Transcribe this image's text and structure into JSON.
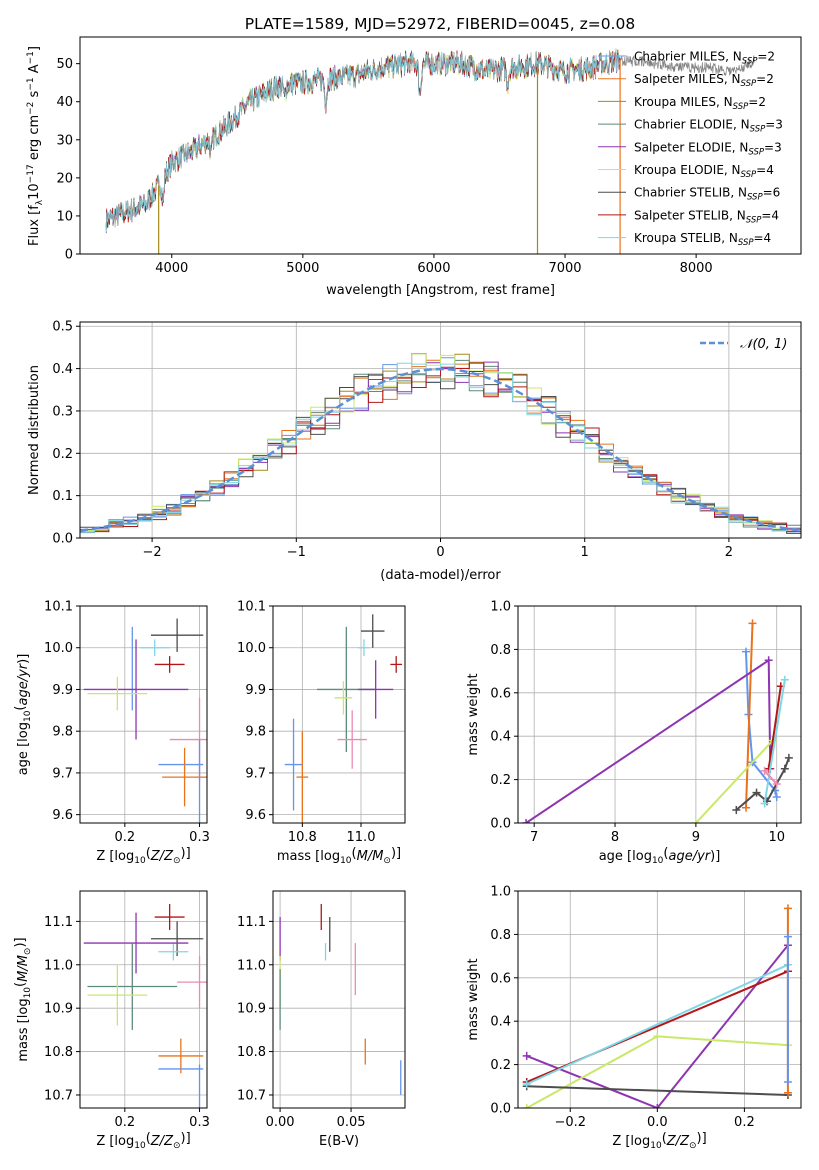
{
  "title": "PLATE=1589, MJD=52972, FIBERID=0045, z=0.08",
  "colors": {
    "blue": "#6495ed",
    "orange": "#e8731c",
    "olive": "#a6891a",
    "teal": "#5e8a78",
    "purple": "#8e35b0",
    "lime": "#c9e86a",
    "dark": "#4d4d4d",
    "red": "#b31717",
    "cyan": "#7fd6e6",
    "pink": "#e88cb4",
    "gray": "#808080",
    "normal": "#5b8fd6"
  },
  "chart_data": [
    {
      "id": "spectrum",
      "type": "line",
      "title": "PLATE=1589, MJD=52972, FIBERID=0045, z=0.08",
      "xlabel": "wavelength [Angstrom, rest frame]",
      "ylabel": "Flux [f_λ 10^-17 erg cm^-2 s^-1 A^-1]",
      "xlim": [
        3300,
        8800
      ],
      "ylim": [
        0,
        57
      ],
      "xticks": [
        4000,
        5000,
        6000,
        7000,
        8000
      ],
      "yticks": [
        0,
        10,
        20,
        30,
        40,
        50
      ],
      "grid": false,
      "legend_position": "upper-right",
      "data_span": [
        3500,
        7420
      ],
      "continuum": [
        [
          3500,
          9
        ],
        [
          3800,
          13
        ],
        [
          3900,
          18
        ],
        [
          4000,
          24
        ],
        [
          4200,
          28
        ],
        [
          4400,
          33
        ],
        [
          4600,
          40
        ],
        [
          4800,
          44
        ],
        [
          5000,
          45
        ],
        [
          5200,
          46
        ],
        [
          5400,
          47
        ],
        [
          5600,
          49
        ],
        [
          5800,
          50
        ],
        [
          6000,
          50
        ],
        [
          6200,
          50
        ],
        [
          6400,
          48
        ],
        [
          6600,
          49
        ],
        [
          6800,
          50
        ],
        [
          7000,
          48
        ],
        [
          7200,
          49
        ],
        [
          7420,
          51
        ]
      ],
      "absorption": [
        [
          3933,
          -6
        ],
        [
          4300,
          -4
        ],
        [
          4861,
          -3
        ],
        [
          5175,
          -6
        ],
        [
          5893,
          -8
        ],
        [
          6563,
          -4
        ]
      ],
      "observed_extension": [
        [
          7420,
          51
        ],
        [
          7700,
          50
        ],
        [
          7900,
          49
        ],
        [
          8100,
          49
        ],
        [
          8300,
          48
        ],
        [
          8450,
          51
        ]
      ],
      "drop_lines": [
        {
          "x": 7420,
          "color": "#e8731c"
        },
        {
          "x": 3900,
          "color": "#a6891a"
        },
        {
          "x": 6790,
          "color": "#a6891a"
        }
      ],
      "series": [
        {
          "label_main": "Chabrier MILES, N",
          "label_sub": "SSP",
          "label_end": "=2",
          "color": "#6495ed"
        },
        {
          "label_main": "Salpeter MILES, N",
          "label_sub": "SSP",
          "label_end": "=2",
          "color": "#e8731c"
        },
        {
          "label_main": "Kroupa MILES, N",
          "label_sub": "SSP",
          "label_end": "=2",
          "color": "#a6891a"
        },
        {
          "label_main": "Chabrier ELODIE, N",
          "label_sub": "SSP",
          "label_end": "=3",
          "color": "#5e8a78"
        },
        {
          "label_main": "Salpeter ELODIE, N",
          "label_sub": "SSP",
          "label_end": "=3",
          "color": "#8e35b0"
        },
        {
          "label_main": "Kroupa ELODIE, N",
          "label_sub": "SSP",
          "label_end": "=4",
          "color": "#c9e86a"
        },
        {
          "label_main": "Chabrier STELIB, N",
          "label_sub": "SSP",
          "label_end": "=6",
          "color": "#4d4d4d"
        },
        {
          "label_main": "Salpeter STELIB, N",
          "label_sub": "SSP",
          "label_end": "=4",
          "color": "#b31717"
        },
        {
          "label_main": "Kroupa STELIB, N",
          "label_sub": "SSP",
          "label_end": "=4",
          "color": "#7fd6e6"
        }
      ]
    },
    {
      "id": "residuals",
      "type": "histogram",
      "xlabel": "(data-model)/error",
      "ylabel": "Normed distribution",
      "xlim": [
        -2.5,
        2.5
      ],
      "ylim": [
        0,
        0.51
      ],
      "xticks": [
        -2,
        -1,
        0,
        1,
        2
      ],
      "yticks": [
        0.0,
        0.1,
        0.2,
        0.3,
        0.4,
        0.5
      ],
      "grid": true,
      "bin_width": 0.1,
      "normal_label": "𝒩(0, 1)",
      "legend_position": "upper-right",
      "series_colors": [
        "#6495ed",
        "#e8731c",
        "#a6891a",
        "#5e8a78",
        "#8e35b0",
        "#c9e86a",
        "#4d4d4d",
        "#b31717",
        "#7fd6e6"
      ]
    },
    {
      "id": "z_age",
      "type": "errorbar",
      "xlabel_main": "Z [log",
      "xlabel_sub": "10",
      "xlabel_rest": "(Z/Z",
      "xlabel_sun": "⊙",
      "xlabel_end": ")]",
      "ylabel": "age  [log10(age/yr)]",
      "xlim": [
        0.14,
        0.31
      ],
      "ylim": [
        9.58,
        10.1
      ],
      "xticks": [
        0.2,
        0.3
      ],
      "yticks": [
        9.6,
        9.7,
        9.8,
        9.9,
        10.0,
        10.1
      ],
      "points": [
        {
          "x": 0.27,
          "y": 10.03,
          "xerr": 0.035,
          "yerr": 0.04,
          "color": "#4d4d4d"
        },
        {
          "x": 0.26,
          "y": 9.96,
          "xerr": 0.02,
          "yerr": 0.02,
          "color": "#b31717"
        },
        {
          "x": 0.24,
          "y": 10.0,
          "xerr": 0.02,
          "yerr": 0.02,
          "color": "#7fd6e6"
        },
        {
          "x": 0.21,
          "y": 9.95,
          "xerr": 0.0,
          "yerr": 0.1,
          "color": "#6495ed"
        },
        {
          "x": 0.215,
          "y": 9.9,
          "xerr": 0.07,
          "yerr": 0.12,
          "color": "#8e35b0"
        },
        {
          "x": 0.19,
          "y": 9.89,
          "xerr": 0.04,
          "yerr": 0.04,
          "color": "#c9e86a"
        },
        {
          "x": 0.3,
          "y": 9.78,
          "xerr": 0.04,
          "yerr": 0.1,
          "color": "#e88cb4"
        },
        {
          "x": 0.275,
          "y": 9.72,
          "xerr": 0.03,
          "yerr": 0.0,
          "color": "#6495ed"
        },
        {
          "x": 0.28,
          "y": 9.69,
          "xerr": 0.03,
          "yerr": 0.07,
          "color": "#e8731c"
        },
        {
          "x": 0.3,
          "y": 9.68,
          "xerr": 0.0,
          "yerr": 0.1,
          "color": "#6495ed"
        }
      ]
    },
    {
      "id": "mass_age",
      "type": "errorbar",
      "xlabel": "mass [log10(M/M⊙)]",
      "xlim": [
        10.7,
        11.15
      ],
      "ylim": [
        9.58,
        10.1
      ],
      "xticks": [
        10.8,
        11.0
      ],
      "yticks": [
        9.6,
        9.7,
        9.8,
        9.9,
        10.0,
        10.1
      ],
      "points": [
        {
          "x": 11.04,
          "y": 10.04,
          "xerr": 0.04,
          "yerr": 0.04,
          "color": "#4d4d4d"
        },
        {
          "x": 11.12,
          "y": 9.96,
          "xerr": 0.02,
          "yerr": 0.02,
          "color": "#b31717"
        },
        {
          "x": 11.01,
          "y": 10.0,
          "xerr": 0.02,
          "yerr": 0.02,
          "color": "#7fd6e6"
        },
        {
          "x": 10.95,
          "y": 9.9,
          "xerr": 0.1,
          "yerr": 0.15,
          "color": "#5e8a78"
        },
        {
          "x": 11.05,
          "y": 9.9,
          "xerr": 0.06,
          "yerr": 0.07,
          "color": "#8e35b0"
        },
        {
          "x": 10.94,
          "y": 9.88,
          "xerr": 0.03,
          "yerr": 0.04,
          "color": "#c9e86a"
        },
        {
          "x": 10.97,
          "y": 9.78,
          "xerr": 0.05,
          "yerr": 0.07,
          "color": "#e88cb4"
        },
        {
          "x": 10.77,
          "y": 9.72,
          "xerr": 0.03,
          "yerr": 0.11,
          "color": "#6495ed"
        },
        {
          "x": 10.8,
          "y": 9.69,
          "xerr": 0.02,
          "yerr": 0.11,
          "color": "#e8731c"
        }
      ]
    },
    {
      "id": "age_weight",
      "type": "line",
      "xlabel": "age  [log10(age/yr)]",
      "ylabel": "mass weight",
      "xlim": [
        6.8,
        10.3
      ],
      "ylim": [
        0,
        1
      ],
      "xticks": [
        7,
        8,
        9,
        10
      ],
      "yticks": [
        0.0,
        0.2,
        0.4,
        0.6,
        0.8,
        1.0
      ],
      "series": [
        {
          "color": "#6495ed",
          "x": [
            9.62,
            9.65,
            9.7,
            9.98,
            10.0
          ],
          "y": [
            0.79,
            0.5,
            0.28,
            0.15,
            0.12
          ]
        },
        {
          "color": "#e8731c",
          "x": [
            9.62,
            9.7
          ],
          "y": [
            0.07,
            0.92
          ]
        },
        {
          "color": "#8e35b0",
          "x": [
            6.9,
            9.9,
            9.92
          ],
          "y": [
            0.0,
            0.75,
            0.25
          ]
        },
        {
          "color": "#c9e86a",
          "x": [
            9.0,
            9.95
          ],
          "y": [
            0.0,
            0.38
          ]
        },
        {
          "color": "#4d4d4d",
          "x": [
            9.5,
            9.75,
            9.88,
            10.1,
            10.15
          ],
          "y": [
            0.06,
            0.14,
            0.1,
            0.25,
            0.3
          ]
        },
        {
          "color": "#b31717",
          "x": [
            9.9,
            10.05
          ],
          "y": [
            0.25,
            0.63
          ]
        },
        {
          "color": "#7fd6e6",
          "x": [
            9.85,
            10.1
          ],
          "y": [
            0.09,
            0.66
          ]
        },
        {
          "color": "#e88cb4",
          "x": [
            9.85,
            10.0
          ],
          "y": [
            0.24,
            0.18
          ]
        }
      ]
    },
    {
      "id": "z_mass",
      "type": "errorbar",
      "xlabel": "Z [log10(Z/Z⊙)]",
      "ylabel": "mass [log10(M/M⊙)]",
      "xlim": [
        0.14,
        0.31
      ],
      "ylim": [
        10.67,
        11.17
      ],
      "xticks": [
        0.2,
        0.3
      ],
      "yticks": [
        10.7,
        10.8,
        10.9,
        11.0,
        11.1
      ],
      "points": [
        {
          "x": 0.26,
          "y": 11.11,
          "xerr": 0.02,
          "yerr": 0.03,
          "color": "#b31717"
        },
        {
          "x": 0.27,
          "y": 11.06,
          "xerr": 0.035,
          "yerr": 0.04,
          "color": "#4d4d4d"
        },
        {
          "x": 0.265,
          "y": 11.03,
          "xerr": 0.02,
          "yerr": 0.02,
          "color": "#7fd6e6"
        },
        {
          "x": 0.215,
          "y": 11.05,
          "xerr": 0.07,
          "yerr": 0.07,
          "color": "#8e35b0"
        },
        {
          "x": 0.21,
          "y": 10.95,
          "xerr": 0.06,
          "yerr": 0.1,
          "color": "#5e8a78"
        },
        {
          "x": 0.19,
          "y": 10.93,
          "xerr": 0.04,
          "yerr": 0.07,
          "color": "#c9e86a"
        },
        {
          "x": 0.3,
          "y": 10.96,
          "xerr": 0.03,
          "yerr": 0.06,
          "color": "#e88cb4"
        },
        {
          "x": 0.275,
          "y": 10.79,
          "xerr": 0.03,
          "yerr": 0.04,
          "color": "#e8731c"
        },
        {
          "x": 0.275,
          "y": 10.76,
          "xerr": 0.03,
          "yerr": 0.0,
          "color": "#6495ed"
        },
        {
          "x": 0.3,
          "y": 10.72,
          "xerr": 0.0,
          "yerr": 0.05,
          "color": "#6495ed"
        }
      ]
    },
    {
      "id": "ebv_mass",
      "type": "errorbar",
      "xlabel": "E(B-V)",
      "xlim": [
        -0.005,
        0.088
      ],
      "ylim": [
        10.67,
        11.17
      ],
      "xticks": [
        0.0,
        0.05
      ],
      "yticks": [
        10.7,
        10.8,
        10.9,
        11.0,
        11.1
      ],
      "points": [
        {
          "x": 0.0,
          "y": 11.06,
          "xerr": 0,
          "yerr": 0.05,
          "color": "#8e35b0"
        },
        {
          "x": 0.0,
          "y": 10.96,
          "xerr": 0,
          "yerr": 0.06,
          "color": "#c9e86a"
        },
        {
          "x": 0.0,
          "y": 10.92,
          "xerr": 0,
          "yerr": 0.07,
          "color": "#5e8a78"
        },
        {
          "x": 0.029,
          "y": 11.11,
          "xerr": 0,
          "yerr": 0.03,
          "color": "#b31717"
        },
        {
          "x": 0.035,
          "y": 11.07,
          "xerr": 0,
          "yerr": 0.04,
          "color": "#4d4d4d"
        },
        {
          "x": 0.032,
          "y": 11.03,
          "xerr": 0,
          "yerr": 0.02,
          "color": "#7fd6e6"
        },
        {
          "x": 0.053,
          "y": 10.99,
          "xerr": 0,
          "yerr": 0.06,
          "color": "#e88cb4"
        },
        {
          "x": 0.06,
          "y": 10.8,
          "xerr": 0,
          "yerr": 0.03,
          "color": "#e8731c"
        },
        {
          "x": 0.085,
          "y": 10.74,
          "xerr": 0,
          "yerr": 0.04,
          "color": "#6495ed"
        }
      ]
    },
    {
      "id": "z_weight",
      "type": "line",
      "xlabel": "Z [log10(Z/Z⊙)]",
      "ylabel": "mass weight",
      "xlim": [
        -0.32,
        0.33
      ],
      "ylim": [
        0,
        1
      ],
      "xticks": [
        -0.2,
        0.0,
        0.2
      ],
      "yticks": [
        0.0,
        0.2,
        0.4,
        0.6,
        0.8,
        1.0
      ],
      "series": [
        {
          "color": "#8e35b0",
          "x": [
            -0.3,
            0.0,
            0.3
          ],
          "y": [
            0.24,
            0.0,
            0.75
          ]
        },
        {
          "color": "#c9e86a",
          "x": [
            -0.3,
            0.0,
            0.3
          ],
          "y": [
            0.0,
            0.33,
            0.29
          ]
        },
        {
          "color": "#4d4d4d",
          "x": [
            -0.3,
            0.3
          ],
          "y": [
            0.1,
            0.06
          ]
        },
        {
          "color": "#b31717",
          "x": [
            -0.3,
            0.3
          ],
          "y": [
            0.12,
            0.63
          ]
        },
        {
          "color": "#7fd6e6",
          "x": [
            -0.3,
            0.3
          ],
          "y": [
            0.11,
            0.66
          ]
        },
        {
          "color": "#e8731c",
          "x": [
            0.3,
            0.3
          ],
          "y": [
            0.07,
            0.92
          ]
        },
        {
          "color": "#6495ed",
          "x": [
            0.3,
            0.3
          ],
          "y": [
            0.12,
            0.79
          ]
        }
      ]
    }
  ],
  "labels": {
    "flux_ylabel": "Flux [f",
    "age_ylabel": "age  [log",
    "mass_ylabel": "mass [log",
    "mass_xlabel": "mass [log",
    "age_xlabel": "age  [log",
    "z_xlabel": "Z [log",
    "weight_ylabel": "mass weight",
    "ebv_xlabel": "E(B-V)"
  }
}
